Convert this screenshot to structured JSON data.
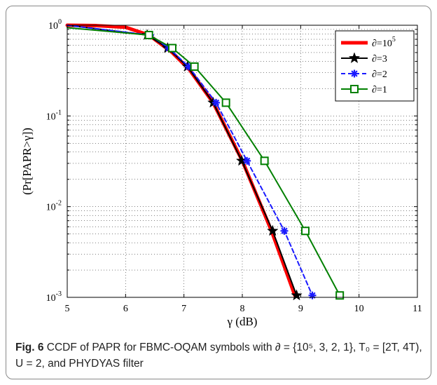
{
  "chart_data": {
    "type": "line",
    "xlabel": "γ (dB)",
    "ylabel": "(Pr[PAPR>γ])",
    "xlim": [
      5,
      11
    ],
    "ylim": [
      0.001,
      1
    ],
    "yscale": "log",
    "grid": true,
    "legend_position": "top-right",
    "x_ticks": [
      "5",
      "6",
      "7",
      "8",
      "9",
      "10",
      "11"
    ],
    "y_ticks": [
      {
        "value": 1,
        "base": "10",
        "exp": "0"
      },
      {
        "value": 0.1,
        "base": "10",
        "exp": "-1"
      },
      {
        "value": 0.01,
        "base": "10",
        "exp": "-2"
      },
      {
        "value": 0.001,
        "base": "10",
        "exp": "-3"
      }
    ],
    "series": [
      {
        "name": "∂=10",
        "name_sup": "5",
        "color": "#ff0000",
        "width": 5,
        "dash": "",
        "marker": "none",
        "x": [
          5,
          5.5,
          6.0,
          6.4,
          6.8,
          7.1,
          7.5,
          8.0,
          8.5,
          8.9
        ],
        "y": [
          1.0,
          0.99,
          0.95,
          0.78,
          0.5,
          0.32,
          0.14,
          0.032,
          0.0054,
          0.00105
        ]
      },
      {
        "name": "∂=3",
        "name_sup": "",
        "color": "#000000",
        "width": 2,
        "dash": "",
        "marker": "star",
        "x": [
          5,
          6.37,
          6.72,
          7.06,
          7.5,
          7.99,
          8.52,
          8.93
        ],
        "y": [
          1.0,
          0.78,
          0.56,
          0.35,
          0.14,
          0.032,
          0.0054,
          0.00105
        ],
        "marker_x": [
          6.37,
          6.72,
          7.06,
          7.5,
          7.99,
          8.52,
          8.93
        ],
        "marker_y": [
          0.78,
          0.56,
          0.35,
          0.14,
          0.032,
          0.0054,
          0.00105
        ]
      },
      {
        "name": "∂=2",
        "name_sup": "",
        "color": "#1a1aff",
        "width": 2,
        "dash": "6,4",
        "marker": "asterisk",
        "x": [
          5,
          6.42,
          6.74,
          7.08,
          7.55,
          8.08,
          8.72,
          9.2
        ],
        "y": [
          1.0,
          0.78,
          0.56,
          0.35,
          0.14,
          0.032,
          0.0054,
          0.00105
        ],
        "marker_x": [
          6.42,
          6.74,
          7.08,
          7.55,
          8.08,
          8.72,
          9.2
        ],
        "marker_y": [
          0.78,
          0.56,
          0.35,
          0.14,
          0.032,
          0.0054,
          0.00105
        ]
      },
      {
        "name": "∂=1",
        "name_sup": "",
        "color": "#008000",
        "width": 2,
        "dash": "",
        "marker": "square",
        "x": [
          5,
          6.4,
          6.8,
          7.18,
          7.72,
          8.38,
          9.08,
          9.67
        ],
        "y": [
          0.94,
          0.78,
          0.56,
          0.35,
          0.14,
          0.032,
          0.0054,
          0.00105
        ],
        "marker_x": [
          6.4,
          6.8,
          7.18,
          7.72,
          8.38,
          9.08,
          9.67
        ],
        "marker_y": [
          0.78,
          0.56,
          0.35,
          0.14,
          0.032,
          0.0054,
          0.00105
        ]
      }
    ]
  },
  "caption": {
    "fig_label": "Fig. 6",
    "text": " CCDF of PAPR for FBMC-OQAM symbols with ∂ = {10⁵, 3, 2, 1}, T₀ = [2T, 4T), U = 2, and PHYDYAS filter"
  }
}
